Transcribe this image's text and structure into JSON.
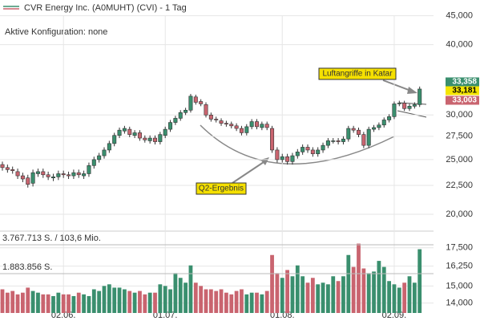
{
  "chart_data": {
    "type": "candlestick",
    "title": "CVR Energy Inc. (A0MUHT) (CVI) - 1 Tag",
    "subtitle": "Aktive Konfiguration: none",
    "log_scale": true,
    "grid": true,
    "up_color": "#3a8f6e",
    "down_color": "#c9646f",
    "categories": [
      null,
      null,
      null,
      null,
      null,
      null,
      null,
      null,
      null,
      null,
      null,
      null,
      "02.06.",
      null,
      null,
      null,
      null,
      null,
      null,
      null,
      null,
      null,
      null,
      null,
      null,
      null,
      null,
      null,
      null,
      null,
      null,
      null,
      "01.07.",
      null,
      null,
      null,
      null,
      null,
      null,
      null,
      null,
      null,
      null,
      null,
      null,
      null,
      null,
      null,
      null,
      null,
      null,
      null,
      null,
      null,
      null,
      "01.08.",
      null,
      null,
      null,
      null,
      null,
      null,
      null,
      null,
      null,
      null,
      null,
      null,
      null,
      null,
      null,
      null,
      null,
      null,
      null,
      null,
      null,
      "02.09.",
      null,
      null,
      null,
      null,
      null
    ],
    "open": [
      24500,
      24200,
      24000,
      23800,
      23400,
      23200,
      22700,
      23600,
      23800,
      23500,
      23200,
      23300,
      23600,
      23500,
      23400,
      23700,
      23400,
      23600,
      24400,
      25000,
      25400,
      26000,
      26700,
      27600,
      28100,
      28300,
      27600,
      27900,
      27300,
      27000,
      27300,
      26900,
      27600,
      28300,
      29100,
      29600,
      30300,
      30600,
      32300,
      31700,
      31300,
      30000,
      29500,
      29300,
      29000,
      28900,
      28700,
      28400,
      27900,
      28600,
      29200,
      28500,
      28900,
      28400,
      26000,
      25000,
      25300,
      24800,
      25400,
      25800,
      26300,
      26000,
      25600,
      26000,
      26500,
      27000,
      27000,
      26900,
      27200,
      28400,
      28200,
      27700,
      26500,
      28300,
      28500,
      28800,
      29400,
      29800,
      31400,
      31500,
      30800,
      31100,
      31300
    ],
    "high": [
      24800,
      24500,
      24300,
      24100,
      23700,
      23500,
      24000,
      24100,
      24100,
      23800,
      23600,
      23900,
      23900,
      23800,
      24000,
      24000,
      23900,
      24700,
      25300,
      25700,
      26300,
      27000,
      27900,
      28500,
      28700,
      28600,
      28200,
      28200,
      27600,
      27600,
      27600,
      28000,
      28600,
      29400,
      29900,
      30600,
      30900,
      32700,
      32600,
      32000,
      31600,
      30300,
      29800,
      29600,
      29300,
      29200,
      29000,
      28700,
      28900,
      29500,
      29500,
      29200,
      29200,
      28700,
      26300,
      25600,
      25600,
      25700,
      26100,
      26600,
      26600,
      26300,
      26300,
      26800,
      27300,
      27300,
      27300,
      27500,
      28700,
      28700,
      28500,
      28000,
      28600,
      28800,
      29100,
      29700,
      30100,
      31700,
      31800,
      31800,
      31400,
      31600,
      33700
    ],
    "low": [
      23900,
      23700,
      23600,
      23100,
      22800,
      22300,
      22400,
      23300,
      23200,
      23000,
      22900,
      23000,
      23200,
      23100,
      23100,
      23200,
      23100,
      23300,
      24100,
      24700,
      25100,
      25700,
      26400,
      27300,
      27800,
      27400,
      27300,
      27000,
      26800,
      26700,
      26600,
      26600,
      27300,
      28000,
      28800,
      29300,
      30000,
      30300,
      31300,
      31100,
      29700,
      29200,
      29100,
      28700,
      28600,
      28400,
      28100,
      27600,
      27600,
      28300,
      28300,
      28200,
      28200,
      25700,
      24700,
      24700,
      24500,
      24500,
      25100,
      25500,
      25700,
      25300,
      25300,
      25700,
      26200,
      26700,
      26600,
      26600,
      26900,
      27900,
      27400,
      26200,
      26200,
      28000,
      28200,
      28500,
      29100,
      29500,
      31100,
      30500,
      30500,
      30800,
      31000
    ],
    "close": [
      24200,
      24000,
      23900,
      23400,
      23100,
      22600,
      23700,
      23800,
      23500,
      23300,
      23300,
      23600,
      23500,
      23400,
      23700,
      23500,
      23600,
      24400,
      25000,
      25400,
      26000,
      26700,
      27600,
      28200,
      28400,
      27700,
      27900,
      27300,
      27100,
      27300,
      26900,
      27700,
      28300,
      29100,
      29600,
      30300,
      30600,
      32400,
      31600,
      31400,
      30000,
      29500,
      29400,
      29000,
      28900,
      28700,
      28400,
      27900,
      28600,
      29200,
      28600,
      28900,
      28500,
      26000,
      25000,
      25300,
      24800,
      25400,
      25800,
      26300,
      26000,
      25600,
      26000,
      26500,
      27000,
      27000,
      26900,
      27200,
      28400,
      28200,
      27700,
      26500,
      28300,
      28500,
      28800,
      29400,
      29800,
      31400,
      31500,
      30800,
      31100,
      31300,
      33358
    ],
    "ylim": [
      18850,
      48000
    ],
    "yticks": [
      {
        "value": 20000,
        "label": "20,000"
      },
      {
        "value": 22500,
        "label": "22,500"
      },
      {
        "value": 25000,
        "label": "25,000"
      },
      {
        "value": 27500,
        "label": "27,500"
      },
      {
        "value": 30000,
        "label": "30,000"
      },
      {
        "value": 40000,
        "label": "40,000"
      },
      {
        "value": 45000,
        "label": "45,000"
      }
    ],
    "price_labels": [
      {
        "value": 33358,
        "label": "33,358",
        "color": "#3a8f6e"
      },
      {
        "value": 33181,
        "label": "33,181",
        "color": "#f5e500"
      },
      {
        "value": 33003,
        "label": "33,003",
        "color": "#c9646f"
      }
    ],
    "annotations": [
      "Luftangriffe in Katar",
      "Q2-Ergebnis"
    ],
    "volume": {
      "values": [
        14800,
        14600,
        14700,
        14500,
        14600,
        14900,
        14700,
        14600,
        14500,
        14500,
        14400,
        14600,
        14500,
        14500,
        14400,
        14600,
        14500,
        14400,
        14800,
        14700,
        15000,
        15100,
        14900,
        14900,
        14800,
        14700,
        14600,
        14700,
        14500,
        14600,
        14600,
        15100,
        15000,
        14800,
        15800,
        15500,
        15200,
        16300,
        15200,
        15000,
        14800,
        14800,
        14700,
        14800,
        14600,
        14500,
        14700,
        14800,
        14500,
        14600,
        14600,
        14500,
        14700,
        17000,
        15800,
        15500,
        16000,
        15600,
        16300,
        15600,
        15200,
        15500,
        15100,
        15200,
        15100,
        15600,
        15300,
        15600,
        17000,
        16200,
        17800,
        16100,
        15800,
        15900,
        16600,
        16200,
        15300,
        15100,
        14900,
        15200,
        15600,
        15200,
        17400
      ],
      "ylim": [
        13450,
        18600
      ],
      "yticks": [
        {
          "value": 14000,
          "label": "14,000"
        },
        {
          "value": 15000,
          "label": "15,000"
        },
        {
          "value": 16250,
          "label": "16,250"
        },
        {
          "value": 17500,
          "label": "17,500"
        }
      ],
      "labels": [
        "3.767.713 S. / 103,6 Mio.",
        "1.883.856 S."
      ]
    }
  }
}
